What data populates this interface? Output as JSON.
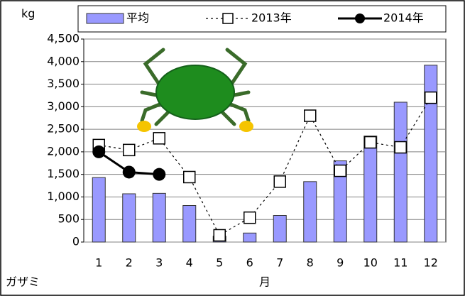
{
  "chart_data": {
    "type": "bar",
    "y_unit": "kg",
    "x_label": "月",
    "corner_label": "ガザミ",
    "categories": [
      "1",
      "2",
      "3",
      "4",
      "5",
      "6",
      "7",
      "8",
      "9",
      "10",
      "11",
      "12"
    ],
    "series": [
      {
        "name": "平均",
        "type": "bar",
        "color": "#9999ff",
        "values": [
          1430,
          1070,
          1080,
          810,
          130,
          200,
          590,
          1340,
          1800,
          2350,
          3100,
          3920
        ]
      },
      {
        "name": "2013年",
        "type": "line",
        "dash": true,
        "marker": "square",
        "color": "#000000",
        "values": [
          2150,
          2040,
          2300,
          1440,
          150,
          540,
          1340,
          2800,
          1580,
          2210,
          2100,
          3200
        ]
      },
      {
        "name": "2014年",
        "type": "line",
        "dash": false,
        "marker": "circle",
        "color": "#000000",
        "values": [
          2000,
          1550,
          1500,
          null,
          null,
          null,
          null,
          null,
          null,
          null,
          null,
          null
        ]
      }
    ],
    "ylim": [
      0,
      4500
    ],
    "yticks": [
      0,
      500,
      {
        "value": 1000,
        "label": "1,000"
      },
      {
        "value": 1500,
        "label": "1,500"
      },
      {
        "value": 2000,
        "label": "2,000"
      },
      {
        "value": 2500,
        "label": "2,500"
      },
      {
        "value": 3000,
        "label": "3,000"
      },
      {
        "value": 3500,
        "label": "3,500"
      },
      {
        "value": 4000,
        "label": "4,000"
      },
      {
        "value": 4500,
        "label": "4,500"
      }
    ],
    "grid": true,
    "legend": "top"
  }
}
